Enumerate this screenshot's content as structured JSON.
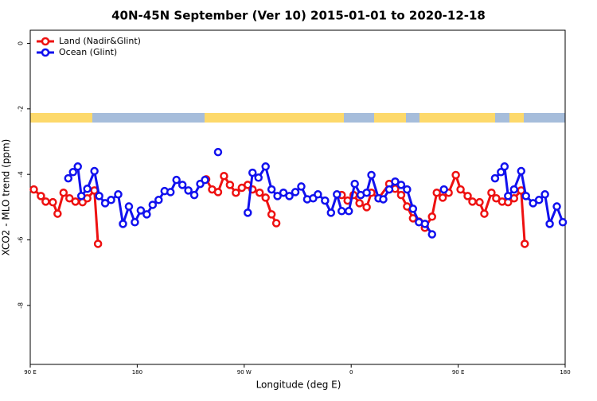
{
  "chart_data": {
    "type": "line",
    "title": "40N-45N September (Ver 10)   2015-01-01 to 2020-12-18",
    "xlabel": "Longitude (deg E)",
    "ylabel": "XCO2 - MLO trend (ppm)",
    "xlim": [
      90,
      540
    ],
    "ylim": [
      -9.8,
      0.4
    ],
    "xticks": [
      {
        "value": 90,
        "label": "90 E"
      },
      180,
      {
        "value": 270,
        "label": "90 W"
      },
      {
        "value": 360,
        "label": "0"
      },
      {
        "value": 450,
        "label": "90 E"
      },
      {
        "value": 540,
        "label": "180"
      }
    ],
    "yticks": [
      0,
      -2,
      -4,
      -6,
      -8
    ],
    "legend": "top-left",
    "series": [
      {
        "name": "Land (Nadir&Glint)",
        "color": "#ee1111",
        "x": [
          93,
          99,
          103,
          109,
          113,
          118,
          123,
          128,
          134,
          138,
          144,
          147,
          null,
          238,
          243,
          248,
          253,
          258,
          263,
          268,
          273,
          277,
          283,
          288,
          293,
          297,
          null,
          352,
          357,
          362,
          367,
          373,
          377,
          383,
          392,
          397,
          402,
          407,
          412,
          417,
          422,
          428,
          432,
          437,
          442,
          448,
          452,
          458,
          462,
          468,
          472,
          478,
          482,
          487,
          492,
          497,
          503,
          506
        ],
        "values": [
          -4.46,
          -4.66,
          -4.83,
          -4.85,
          -5.2,
          -4.56,
          -4.73,
          -4.83,
          -4.85,
          -4.73,
          -4.49,
          -6.12,
          null,
          -4.15,
          -4.46,
          -4.54,
          -4.05,
          -4.32,
          -4.56,
          -4.41,
          -4.32,
          -4.46,
          -4.56,
          -4.71,
          -5.22,
          -5.49,
          null,
          -4.63,
          -4.8,
          -4.63,
          -4.88,
          -5.0,
          -4.56,
          -4.73,
          -4.29,
          -4.44,
          -4.63,
          -4.98,
          -5.34,
          -5.44,
          -5.63,
          -5.29,
          -4.56,
          -4.71,
          -4.56,
          -4.02,
          -4.46,
          -4.66,
          -4.83,
          -4.85,
          -5.2,
          -4.56,
          -4.73,
          -4.83,
          -4.85,
          -4.73,
          -4.49,
          -6.12
        ]
      },
      {
        "name": "Ocean (Glint)",
        "color": "#1111ee",
        "x": [
          122,
          126,
          130,
          133,
          138,
          144,
          148,
          153,
          158,
          164,
          168,
          173,
          178,
          183,
          188,
          193,
          198,
          203,
          208,
          213,
          218,
          223,
          228,
          233,
          237,
          null,
          248,
          null,
          273,
          277,
          282,
          288,
          293,
          298,
          303,
          308,
          313,
          318,
          323,
          328,
          332,
          338,
          343,
          348,
          352,
          358,
          363,
          368,
          373,
          377,
          383,
          387,
          392,
          397,
          402,
          407,
          412,
          417,
          422,
          428,
          null,
          438,
          null,
          481,
          486,
          489,
          492,
          497,
          503,
          507,
          513,
          518,
          523,
          527,
          533,
          538
        ],
        "values": [
          -4.12,
          -3.93,
          -3.76,
          -4.66,
          -4.44,
          -3.9,
          -4.66,
          -4.88,
          -4.78,
          -4.61,
          -5.51,
          -4.98,
          -5.46,
          -5.1,
          -5.22,
          -4.93,
          -4.78,
          -4.51,
          -4.54,
          -4.17,
          -4.32,
          -4.49,
          -4.63,
          -4.29,
          -4.17,
          null,
          -3.32,
          null,
          -5.17,
          -3.95,
          -4.1,
          -3.76,
          -4.46,
          -4.66,
          -4.56,
          -4.66,
          -4.54,
          -4.37,
          -4.76,
          -4.73,
          -4.61,
          -4.8,
          -5.17,
          -4.61,
          -5.12,
          -5.12,
          -4.29,
          -4.63,
          -4.56,
          -4.02,
          -4.73,
          -4.76,
          -4.46,
          -4.22,
          -4.32,
          -4.46,
          -5.05,
          -5.46,
          -5.51,
          -5.83,
          null,
          -4.46,
          null,
          -4.12,
          -3.93,
          -3.76,
          -4.66,
          -4.46,
          -3.9,
          -4.66,
          -4.88,
          -4.78,
          -4.61,
          -5.51,
          -4.98,
          -5.46
        ]
      }
    ]
  }
}
